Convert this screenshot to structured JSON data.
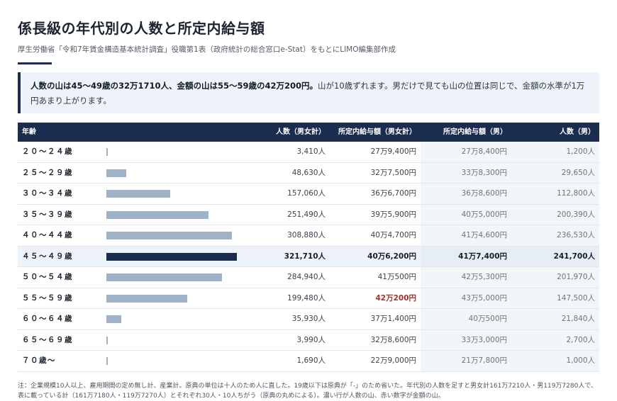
{
  "title": "係長級の年代別の人数と所定内給与額",
  "source": "厚生労働省「令和7年賃金構造基本統計調査」役職第1表（政府統計の総合窓口e-Stat）をもとにLIMO編集部作成",
  "callout": {
    "bold": "人数の山は45〜49歳の32万1710人、金額の山は55〜59歳の42万200円。",
    "rest": "山が10歳ずれます。男だけで見ても山の位置は同じで、金額の水準が1万円あまり上がります。"
  },
  "colors": {
    "header": "#1b2d4f",
    "bar": "#9fb2c8",
    "bar_peak": "#1b2d4f",
    "salary_peak": "#a0352a",
    "callout_bg": "#edf3f9"
  },
  "table": {
    "headers": {
      "age": "年齢",
      "count": "人数（男女計）",
      "salary": "所定内給与額（男女計）",
      "male_salary": "所定内給与額（男）",
      "male_count": "人数（男）"
    },
    "bar_max": 321710,
    "rows": [
      {
        "age": "２０〜２４歳",
        "count": "3,410人",
        "count_value": 3410,
        "salary": "27万9,400円",
        "male_salary": "27万8,400円",
        "male_count": "1,200人"
      },
      {
        "age": "２５〜２９歳",
        "count": "48,630人",
        "count_value": 48630,
        "salary": "32万7,500円",
        "male_salary": "33万8,300円",
        "male_count": "29,650人"
      },
      {
        "age": "３０〜３４歳",
        "count": "157,060人",
        "count_value": 157060,
        "salary": "36万6,700円",
        "male_salary": "36万8,600円",
        "male_count": "112,800人"
      },
      {
        "age": "３５〜３９歳",
        "count": "251,490人",
        "count_value": 251490,
        "salary": "39万5,900円",
        "male_salary": "40万5,000円",
        "male_count": "200,390人"
      },
      {
        "age": "４０〜４４歳",
        "count": "308,880人",
        "count_value": 308880,
        "salary": "40万4,700円",
        "male_salary": "41万4,600円",
        "male_count": "236,530人"
      },
      {
        "age": "４５〜４９歳",
        "count": "321,710人",
        "count_value": 321710,
        "salary": "40万6,200円",
        "male_salary": "41万7,400円",
        "male_count": "241,700人",
        "peak_count": true
      },
      {
        "age": "５０〜５４歳",
        "count": "284,940人",
        "count_value": 284940,
        "salary": "41万500円",
        "male_salary": "42万5,300円",
        "male_count": "201,970人"
      },
      {
        "age": "５５〜５９歳",
        "count": "199,480人",
        "count_value": 199480,
        "salary": "42万200円",
        "male_salary": "43万5,000円",
        "male_count": "147,500人",
        "peak_salary": true
      },
      {
        "age": "６０〜６４歳",
        "count": "35,930人",
        "count_value": 35930,
        "salary": "37万1,400円",
        "male_salary": "40万500円",
        "male_count": "21,840人"
      },
      {
        "age": "６５〜６９歳",
        "count": "3,990人",
        "count_value": 3990,
        "salary": "32万8,600円",
        "male_salary": "33万3,000円",
        "male_count": "2,700人"
      },
      {
        "age": "７０歳〜",
        "count": "1,690人",
        "count_value": 1690,
        "salary": "22万9,000円",
        "male_salary": "21万7,800円",
        "male_count": "1,000人"
      }
    ]
  },
  "footnote": "注：企業規模10人以上、雇用期間の定め無し計、産業計。原典の単位は十人のため人に直した。19歳以下は原典が「-」のため省いた。年代別の人数を足すと男女計161万7210人・男119万7280人で、表に載っている計（161万7180人・119万7270人）とそれぞれ30人・10人ちがう（原典の丸めによる）。濃い行が人数の山、赤い数字が金額の山。"
}
